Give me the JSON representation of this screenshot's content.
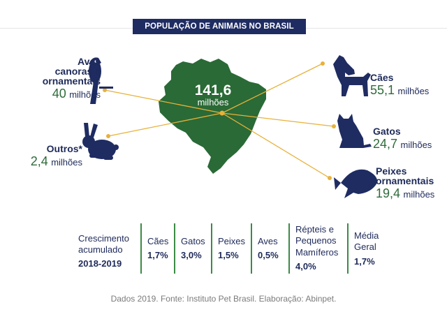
{
  "title": "POPULAÇÃO DE ANIMAIS NO BRASIL",
  "total": {
    "value": "141,6",
    "unit": "milhões"
  },
  "groups": {
    "aves": {
      "name_lines": [
        "Aves",
        "canoras e",
        "ornamentais"
      ],
      "value": "40",
      "unit": "milhões",
      "icon": "parrot-icon"
    },
    "outros": {
      "name": "Outros*",
      "value": "2,4",
      "unit": "milhões",
      "icon": "rabbit-icon"
    },
    "caes": {
      "name": "Cães",
      "value": "55,1",
      "unit": "milhões",
      "icon": "dog-icon"
    },
    "gatos": {
      "name": "Gatos",
      "value": "24,7",
      "unit": "milhões",
      "icon": "cat-icon"
    },
    "peixes": {
      "name_lines": [
        "Peixes",
        "ornamentais"
      ],
      "value": "19,4",
      "unit": "milhões",
      "icon": "fish-icon"
    }
  },
  "growth": {
    "intro_lines": [
      "Crescimento",
      "acumulado"
    ],
    "period": "2018-2019",
    "items": [
      {
        "label_lines": [
          "Cães"
        ],
        "value": "1,7%"
      },
      {
        "label_lines": [
          "Gatos"
        ],
        "value": "3,0%"
      },
      {
        "label_lines": [
          "Peixes"
        ],
        "value": "1,5%"
      },
      {
        "label_lines": [
          "Aves"
        ],
        "value": "0,5%"
      },
      {
        "label_lines": [
          "Répteis e",
          "Pequenos",
          "Mamíferos"
        ],
        "value": "4,0%"
      },
      {
        "label_lines": [
          "Média",
          "Geral"
        ],
        "value": "1,7%"
      }
    ]
  },
  "source": "Dados 2019. Fonte: Instituto Pet Brasil. Elaboração: Abinpet.",
  "chart_data": {
    "type": "table",
    "title": "POPULAÇÃO DE ANIMAIS NO BRASIL",
    "total": 141.6,
    "unit": "milhões",
    "categories": [
      "Cães",
      "Aves canoras e ornamentais",
      "Gatos",
      "Peixes ornamentais",
      "Outros*"
    ],
    "values": [
      55.1,
      40,
      24.7,
      19.4,
      2.4
    ],
    "growth_2018_2019": {
      "categories": [
        "Cães",
        "Gatos",
        "Peixes",
        "Aves",
        "Répteis e Pequenos Mamíferos",
        "Média Geral"
      ],
      "values_percent": [
        1.7,
        3.0,
        1.5,
        0.5,
        4.0,
        1.7
      ]
    }
  },
  "colors": {
    "navy": "#1f2c62",
    "green": "#2e6b3a",
    "line": "#e8b13a",
    "separator": "#3c8a46"
  }
}
